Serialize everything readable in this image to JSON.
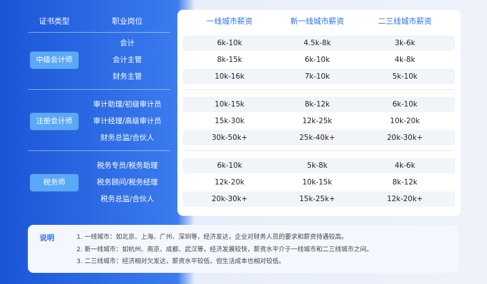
{
  "header": {
    "cert_type": "证书类型",
    "position": "职业岗位",
    "columns": [
      "一线城市薪资",
      "新一线城市薪资",
      "二三线城市薪资"
    ]
  },
  "groups": [
    {
      "name": "中级会计师",
      "rows": [
        {
          "role": "会计",
          "values": [
            "6k-10k",
            "4.5k-8k",
            "3k-6k"
          ]
        },
        {
          "role": "会计主管",
          "values": [
            "8k-15k",
            "6k-10k",
            "4k-8k"
          ]
        },
        {
          "role": "财务主管",
          "values": [
            "10k-16k",
            "7k-10k",
            "5k-10k"
          ]
        }
      ]
    },
    {
      "name": "注册会计师",
      "rows": [
        {
          "role": "审计助理/初级审计员",
          "values": [
            "10k-15k",
            "8k-12k",
            "6k-10k"
          ]
        },
        {
          "role": "审计经理/高级审计员",
          "values": [
            "15k-30k",
            "12k-25k",
            "10k-20k"
          ]
        },
        {
          "role": "财务总监/合伙人",
          "values": [
            "30k-50k+",
            "25k-40k+",
            "20k-30k+"
          ]
        }
      ]
    },
    {
      "name": "税务师",
      "rows": [
        {
          "role": "税务专员/税务助理",
          "values": [
            "6k-10k",
            "5k-8k",
            "4k-6k"
          ]
        },
        {
          "role": "税务顾问/税务经理",
          "values": [
            "12k-20k",
            "10k-15k",
            "8k-12k"
          ]
        },
        {
          "role": "税务总监/合伙人",
          "values": [
            "20k-30k+",
            "15k-25k+",
            "12k-20k+"
          ]
        }
      ]
    }
  ],
  "notes": {
    "label": "说明",
    "lines": [
      "1.  一线城市：如北京、上海、广州、深圳等，经济发达，企业对财务人员的要求和薪资待遇较高。",
      "2.  新一线城市：如杭州、南京、成都、武汉等，经济发展较快，薪资水平介于一线城市和二三线城市之间。",
      "3.  二三线城市：经济相对欠发达，薪资水平较低，但生活成本也相对较低。"
    ]
  }
}
